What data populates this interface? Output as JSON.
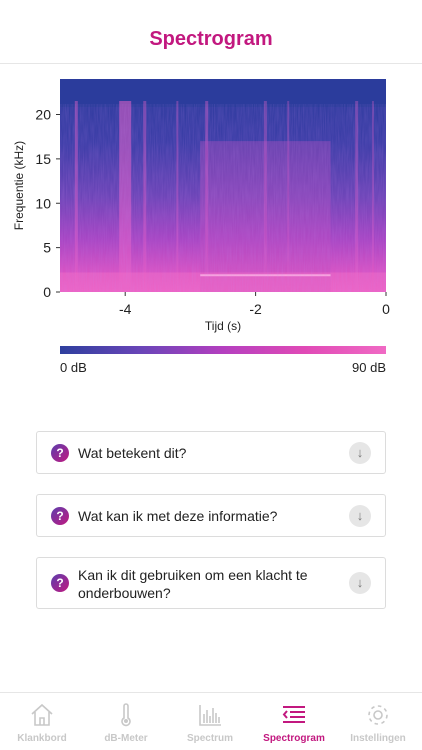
{
  "header": {
    "title": "Spectrogram"
  },
  "chart_data": {
    "type": "heatmap",
    "xlabel": "Tijd (s)",
    "ylabel": "Frequentie (kHz)",
    "xlim": [
      -5,
      0
    ],
    "ylim": [
      0,
      24
    ],
    "xticks": [
      "-4",
      "-2",
      "0"
    ],
    "yticks": [
      "0",
      "5",
      "10",
      "15",
      "20"
    ],
    "colorscale": {
      "min_label": "0 dB",
      "max_label": "90 dB",
      "min": 0,
      "max": 90
    },
    "colors": {
      "low": "#2e3f9e",
      "mid": "#b43fbf",
      "high": "#f06ac4"
    },
    "grid": false
  },
  "faq": [
    {
      "question": "Wat betekent dit?"
    },
    {
      "question": "Wat kan ik met deze informatie?"
    },
    {
      "question": "Kan ik dit gebruiken om een klacht te onderbouwen?"
    }
  ],
  "tabs": [
    {
      "label": "Klankbord",
      "icon": "home-icon",
      "active": false
    },
    {
      "label": "dB-Meter",
      "icon": "thermometer-icon",
      "active": false
    },
    {
      "label": "Spectrum",
      "icon": "bar-chart-icon",
      "active": false
    },
    {
      "label": "Spectrogram",
      "icon": "spectrogram-icon",
      "active": true
    },
    {
      "label": "Instellingen",
      "icon": "gear-icon",
      "active": false
    }
  ],
  "accent_color": "#c2187f"
}
